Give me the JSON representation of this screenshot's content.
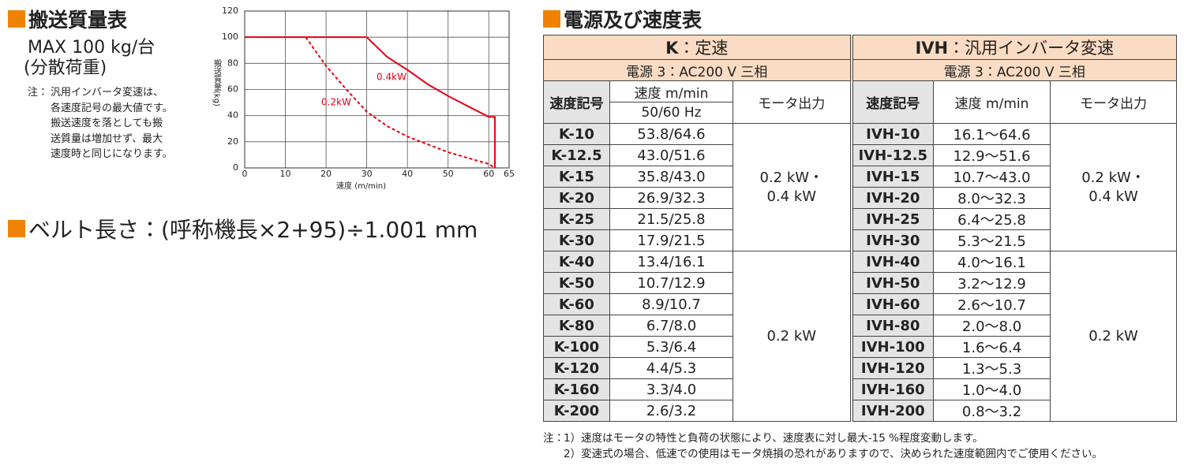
{
  "left": {
    "heading": "搬送質量表",
    "max": "MAX 100 kg/台",
    "load": "(分散荷重)",
    "note": {
      "label": "注：",
      "lines": [
        "汎用インバータ変速は、",
        "各速度記号の最大値です。",
        "搬送速度を落としても搬",
        "送質量は増加せず、最大",
        "速度時と同じになります。"
      ]
    }
  },
  "chart_data": {
    "type": "line",
    "xlabel": "速度 (m/min)",
    "ylabel": "搬送質量(kg)",
    "xlim": [
      0,
      65
    ],
    "ylim": [
      0,
      120
    ],
    "xticks": [
      0,
      10,
      20,
      30,
      40,
      50,
      60,
      65
    ],
    "yticks": [
      0,
      20,
      40,
      60,
      80,
      100,
      120
    ],
    "grid": true,
    "series": [
      {
        "name": "0.4kW",
        "color": "#e60012",
        "dash": false,
        "x": [
          0,
          30,
          35,
          40,
          45,
          50,
          55,
          60,
          61.5,
          61.5
        ],
        "values": [
          100,
          100,
          85,
          75,
          64,
          55,
          47,
          39,
          39,
          0
        ]
      },
      {
        "name": "0.2kW",
        "color": "#e60012",
        "dash": true,
        "x": [
          15,
          20,
          25,
          30,
          35,
          40,
          50,
          60,
          61.5
        ],
        "values": [
          100,
          78,
          60,
          43,
          32,
          24,
          12,
          3,
          0
        ]
      }
    ]
  },
  "belt": {
    "heading": "ベルト長さ：(呼称機長×2+95)÷1.001 mm"
  },
  "table": {
    "title": "電源及び速度表",
    "groups": [
      {
        "name": "K",
        "label": "：定速",
        "power": "電源 3：AC200 V 三相",
        "headers": {
          "code": "速度記号",
          "speed": "速度 m/min",
          "speed_sub": "50/60 Hz",
          "output": "モータ出力"
        },
        "rows": [
          [
            "K-10",
            "53.8/64.6"
          ],
          [
            "K-12.5",
            "43.0/51.6"
          ],
          [
            "K-15",
            "35.8/43.0"
          ],
          [
            "K-20",
            "26.9/32.3"
          ],
          [
            "K-25",
            "21.5/25.8"
          ],
          [
            "K-30",
            "17.9/21.5"
          ],
          [
            "K-40",
            "13.4/16.1"
          ],
          [
            "K-50",
            "10.7/12.9"
          ],
          [
            "K-60",
            "8.9/10.7"
          ],
          [
            "K-80",
            "6.7/8.0"
          ],
          [
            "K-100",
            "5.3/6.4"
          ],
          [
            "K-120",
            "4.4/5.3"
          ],
          [
            "K-160",
            "3.3/4.0"
          ],
          [
            "K-200",
            "2.6/3.2"
          ]
        ],
        "outputs": [
          "0.2 kW・\n0.4 kW",
          "0.2 kW"
        ]
      },
      {
        "name": "IVH",
        "label": "：汎用インバータ変速",
        "power": "電源 3：AC200 V 三相",
        "headers": {
          "code": "速度記号",
          "speed": "速度 m/min",
          "output": "モータ出力"
        },
        "rows": [
          [
            "IVH-10",
            "16.1～64.6"
          ],
          [
            "IVH-12.5",
            "12.9～51.6"
          ],
          [
            "IVH-15",
            "10.7～43.0"
          ],
          [
            "IVH-20",
            "8.0～32.3"
          ],
          [
            "IVH-25",
            "6.4～25.8"
          ],
          [
            "IVH-30",
            "5.3～21.5"
          ],
          [
            "IVH-40",
            "4.0～16.1"
          ],
          [
            "IVH-50",
            "3.2～12.9"
          ],
          [
            "IVH-60",
            "2.6～10.7"
          ],
          [
            "IVH-80",
            "2.0～8.0"
          ],
          [
            "IVH-100",
            "1.6～6.4"
          ],
          [
            "IVH-120",
            "1.3～5.3"
          ],
          [
            "IVH-160",
            "1.0～4.0"
          ],
          [
            "IVH-200",
            "0.8～3.2"
          ]
        ],
        "outputs": [
          "0.2 kW・\n0.4 kW",
          "0.2 kW"
        ]
      }
    ],
    "notes": {
      "label": "注：",
      "items": [
        "1）速度はモータの特性と負荷の状態により、速度表に対し最大-15 %程度変動します。",
        "2）変速式の場合、低速での使用はモータ焼損の恐れがありますので、決められた速度範囲内でご使用ください。"
      ]
    }
  }
}
